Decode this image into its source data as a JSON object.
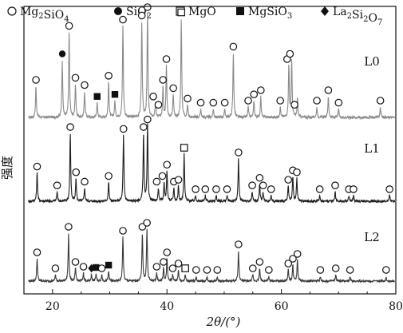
{
  "chart_data": {
    "type": "line",
    "title": "",
    "xlabel": "2θ/(°)",
    "ylabel": "强度",
    "xlim": [
      15,
      80
    ],
    "xticks": [
      20,
      40,
      60,
      80
    ],
    "yticks_shown": false,
    "grid": false,
    "legend_position": "top",
    "legend": [
      {
        "symbol": "open-circle",
        "label": "Mg2SiO4",
        "label_main": "Mg",
        "sub1": "2",
        "mid": "SiO",
        "sub2": "4"
      },
      {
        "symbol": "filled-circle",
        "label": "SiO2",
        "label_main": "SiO",
        "sub1": "2",
        "mid": "",
        "sub2": ""
      },
      {
        "symbol": "open-square",
        "label": "MgO",
        "label_main": "MgO",
        "sub1": "",
        "mid": "",
        "sub2": ""
      },
      {
        "symbol": "filled-square",
        "label": "MgSiO3",
        "label_main": "MgSiO",
        "sub1": "3",
        "mid": "",
        "sub2": ""
      },
      {
        "symbol": "filled-diamond",
        "label": "La2Si2O7",
        "label_main": "La",
        "sub1": "2",
        "mid": "Si",
        "sub2": "2",
        "tail": "O",
        "sub3": "7"
      }
    ],
    "series": [
      {
        "name": "L0",
        "line_color": "#8a8a8a",
        "peaks": [
          {
            "x": 17.1,
            "h": 0.3
          },
          {
            "x": 21.7,
            "h": 0.55
          },
          {
            "x": 22.9,
            "h": 0.82
          },
          {
            "x": 24.0,
            "h": 0.32
          },
          {
            "x": 25.6,
            "h": 0.25
          },
          {
            "x": 27.8,
            "h": 0.14
          },
          {
            "x": 29.8,
            "h": 0.34
          },
          {
            "x": 30.9,
            "h": 0.16
          },
          {
            "x": 32.3,
            "h": 0.88
          },
          {
            "x": 35.6,
            "h": 0.92
          },
          {
            "x": 36.6,
            "h": 1.0
          },
          {
            "x": 38.0,
            "h": 0.14
          },
          {
            "x": 39.3,
            "h": 0.3
          },
          {
            "x": 39.9,
            "h": 0.5
          },
          {
            "x": 41.1,
            "h": 0.22
          },
          {
            "x": 42.5,
            "h": 0.95
          },
          {
            "x": 43.6,
            "h": 0.12
          },
          {
            "x": 45.9,
            "h": 0.08
          },
          {
            "x": 48.1,
            "h": 0.08
          },
          {
            "x": 50.1,
            "h": 0.08
          },
          {
            "x": 51.6,
            "h": 0.62
          },
          {
            "x": 54.2,
            "h": 0.1
          },
          {
            "x": 55.2,
            "h": 0.16
          },
          {
            "x": 56.4,
            "h": 0.2
          },
          {
            "x": 59.8,
            "h": 0.1
          },
          {
            "x": 61.3,
            "h": 0.5
          },
          {
            "x": 61.8,
            "h": 0.55
          },
          {
            "x": 62.8,
            "h": 0.18
          },
          {
            "x": 66.2,
            "h": 0.1
          },
          {
            "x": 68.2,
            "h": 0.2
          },
          {
            "x": 70.0,
            "h": 0.08
          },
          {
            "x": 77.3,
            "h": 0.1
          }
        ],
        "markers": [
          {
            "x": 17.1,
            "symbol": "open-circle"
          },
          {
            "x": 21.7,
            "symbol": "filled-circle"
          },
          {
            "x": 22.9,
            "symbol": "open-circle"
          },
          {
            "x": 24.0,
            "symbol": "open-circle"
          },
          {
            "x": 25.6,
            "symbol": "open-circle"
          },
          {
            "x": 27.8,
            "symbol": "filled-square"
          },
          {
            "x": 29.8,
            "symbol": "open-circle"
          },
          {
            "x": 30.9,
            "symbol": "filled-square"
          },
          {
            "x": 32.3,
            "symbol": "open-circle"
          },
          {
            "x": 35.6,
            "symbol": "open-circle"
          },
          {
            "x": 36.6,
            "symbol": "open-circle"
          },
          {
            "x": 37.6,
            "symbol": "open-circle"
          },
          {
            "x": 38.5,
            "symbol": "open-circle"
          },
          {
            "x": 39.3,
            "symbol": "open-circle"
          },
          {
            "x": 39.9,
            "symbol": "open-circle"
          },
          {
            "x": 41.1,
            "symbol": "open-circle"
          },
          {
            "x": 42.5,
            "symbol": "open-square"
          },
          {
            "x": 43.6,
            "symbol": "open-circle"
          },
          {
            "x": 45.9,
            "symbol": "open-circle"
          },
          {
            "x": 48.1,
            "symbol": "open-circle"
          },
          {
            "x": 50.1,
            "symbol": "open-circle"
          },
          {
            "x": 51.6,
            "symbol": "open-circle"
          },
          {
            "x": 54.2,
            "symbol": "open-circle"
          },
          {
            "x": 55.2,
            "symbol": "open-circle"
          },
          {
            "x": 56.4,
            "symbol": "open-circle"
          },
          {
            "x": 59.8,
            "symbol": "open-circle"
          },
          {
            "x": 61.0,
            "symbol": "open-circle"
          },
          {
            "x": 61.5,
            "symbol": "open-circle"
          },
          {
            "x": 62.3,
            "symbol": "open-circle"
          },
          {
            "x": 66.2,
            "symbol": "open-circle"
          },
          {
            "x": 68.2,
            "symbol": "open-circle"
          },
          {
            "x": 70.0,
            "symbol": "open-circle"
          },
          {
            "x": 77.3,
            "symbol": "open-circle"
          }
        ]
      },
      {
        "name": "L1",
        "line_color": "#1e1e1e",
        "peaks": [
          {
            "x": 17.3,
            "h": 0.3
          },
          {
            "x": 20.8,
            "h": 0.1
          },
          {
            "x": 23.1,
            "h": 0.72
          },
          {
            "x": 24.1,
            "h": 0.24
          },
          {
            "x": 25.6,
            "h": 0.14
          },
          {
            "x": 29.8,
            "h": 0.2
          },
          {
            "x": 32.4,
            "h": 0.7
          },
          {
            "x": 35.9,
            "h": 0.72
          },
          {
            "x": 36.6,
            "h": 0.8
          },
          {
            "x": 38.5,
            "h": 0.14
          },
          {
            "x": 39.5,
            "h": 0.2
          },
          {
            "x": 40.0,
            "h": 0.32
          },
          {
            "x": 41.2,
            "h": 0.14
          },
          {
            "x": 42.0,
            "h": 0.16
          },
          {
            "x": 43.0,
            "h": 0.5
          },
          {
            "x": 45.0,
            "h": 0.06
          },
          {
            "x": 46.7,
            "h": 0.06
          },
          {
            "x": 48.6,
            "h": 0.06
          },
          {
            "x": 50.5,
            "h": 0.06
          },
          {
            "x": 52.5,
            "h": 0.45
          },
          {
            "x": 54.9,
            "h": 0.1
          },
          {
            "x": 56.2,
            "h": 0.18
          },
          {
            "x": 56.8,
            "h": 0.1
          },
          {
            "x": 58.2,
            "h": 0.06
          },
          {
            "x": 61.2,
            "h": 0.16
          },
          {
            "x": 62.0,
            "h": 0.26
          },
          {
            "x": 62.7,
            "h": 0.24
          },
          {
            "x": 66.7,
            "h": 0.06
          },
          {
            "x": 69.4,
            "h": 0.1
          },
          {
            "x": 71.8,
            "h": 0.06
          },
          {
            "x": 72.6,
            "h": 0.06
          },
          {
            "x": 78.9,
            "h": 0.06
          }
        ],
        "markers": [
          {
            "x": 17.3,
            "symbol": "open-circle"
          },
          {
            "x": 20.8,
            "symbol": "open-circle"
          },
          {
            "x": 23.1,
            "symbol": "open-circle"
          },
          {
            "x": 24.1,
            "symbol": "open-circle"
          },
          {
            "x": 25.6,
            "symbol": "open-circle"
          },
          {
            "x": 29.8,
            "symbol": "open-circle"
          },
          {
            "x": 32.4,
            "symbol": "open-circle"
          },
          {
            "x": 35.9,
            "symbol": "open-circle"
          },
          {
            "x": 36.6,
            "symbol": "open-circle"
          },
          {
            "x": 38.2,
            "symbol": "open-circle"
          },
          {
            "x": 39.2,
            "symbol": "open-circle"
          },
          {
            "x": 40.0,
            "symbol": "open-circle"
          },
          {
            "x": 41.2,
            "symbol": "open-circle"
          },
          {
            "x": 42.0,
            "symbol": "open-circle"
          },
          {
            "x": 43.0,
            "symbol": "open-square"
          },
          {
            "x": 45.0,
            "symbol": "open-circle"
          },
          {
            "x": 46.7,
            "symbol": "open-circle"
          },
          {
            "x": 48.6,
            "symbol": "open-circle"
          },
          {
            "x": 50.5,
            "symbol": "open-circle"
          },
          {
            "x": 52.5,
            "symbol": "open-circle"
          },
          {
            "x": 54.9,
            "symbol": "open-circle"
          },
          {
            "x": 56.2,
            "symbol": "open-circle"
          },
          {
            "x": 56.8,
            "symbol": "open-circle"
          },
          {
            "x": 58.2,
            "symbol": "open-circle"
          },
          {
            "x": 61.2,
            "symbol": "open-circle"
          },
          {
            "x": 62.0,
            "symbol": "open-circle"
          },
          {
            "x": 62.7,
            "symbol": "open-circle"
          },
          {
            "x": 66.7,
            "symbol": "open-circle"
          },
          {
            "x": 69.4,
            "symbol": "open-circle"
          },
          {
            "x": 71.8,
            "symbol": "open-circle"
          },
          {
            "x": 72.6,
            "symbol": "open-circle"
          },
          {
            "x": 78.9,
            "symbol": "open-circle"
          }
        ]
      },
      {
        "name": "L2",
        "line_color": "#3a3a3a",
        "peaks": [
          {
            "x": 17.3,
            "h": 0.28
          },
          {
            "x": 20.5,
            "h": 0.08
          },
          {
            "x": 22.8,
            "h": 0.6
          },
          {
            "x": 24.0,
            "h": 0.16
          },
          {
            "x": 25.4,
            "h": 0.1
          },
          {
            "x": 26.8,
            "h": 0.08
          },
          {
            "x": 27.6,
            "h": 0.09
          },
          {
            "x": 28.6,
            "h": 0.08
          },
          {
            "x": 29.8,
            "h": 0.12
          },
          {
            "x": 32.3,
            "h": 0.55
          },
          {
            "x": 35.7,
            "h": 0.6
          },
          {
            "x": 36.5,
            "h": 0.65
          },
          {
            "x": 38.2,
            "h": 0.1
          },
          {
            "x": 39.4,
            "h": 0.16
          },
          {
            "x": 40.0,
            "h": 0.28
          },
          {
            "x": 41.0,
            "h": 0.08
          },
          {
            "x": 42.0,
            "h": 0.14
          },
          {
            "x": 43.2,
            "h": 0.08
          },
          {
            "x": 45.1,
            "h": 0.05
          },
          {
            "x": 47.0,
            "h": 0.05
          },
          {
            "x": 48.8,
            "h": 0.05
          },
          {
            "x": 52.5,
            "h": 0.38
          },
          {
            "x": 55.0,
            "h": 0.08
          },
          {
            "x": 56.2,
            "h": 0.16
          },
          {
            "x": 57.8,
            "h": 0.05
          },
          {
            "x": 61.2,
            "h": 0.14
          },
          {
            "x": 62.0,
            "h": 0.2
          },
          {
            "x": 62.8,
            "h": 0.26
          },
          {
            "x": 66.8,
            "h": 0.05
          },
          {
            "x": 69.5,
            "h": 0.08
          },
          {
            "x": 72.0,
            "h": 0.05
          },
          {
            "x": 78.3,
            "h": 0.05
          }
        ],
        "markers": [
          {
            "x": 17.3,
            "symbol": "open-circle"
          },
          {
            "x": 20.5,
            "symbol": "open-circle"
          },
          {
            "x": 22.8,
            "symbol": "open-circle"
          },
          {
            "x": 24.0,
            "symbol": "open-circle"
          },
          {
            "x": 25.4,
            "symbol": "open-circle"
          },
          {
            "x": 26.8,
            "symbol": "filled-diamond"
          },
          {
            "x": 27.6,
            "symbol": "filled-square"
          },
          {
            "x": 28.6,
            "symbol": "open-circle"
          },
          {
            "x": 29.8,
            "symbol": "filled-square"
          },
          {
            "x": 32.3,
            "symbol": "open-circle"
          },
          {
            "x": 35.7,
            "symbol": "open-circle"
          },
          {
            "x": 36.5,
            "symbol": "open-circle"
          },
          {
            "x": 38.2,
            "symbol": "open-circle"
          },
          {
            "x": 39.4,
            "symbol": "open-circle"
          },
          {
            "x": 40.0,
            "symbol": "open-circle"
          },
          {
            "x": 41.0,
            "symbol": "open-circle"
          },
          {
            "x": 42.0,
            "symbol": "open-circle"
          },
          {
            "x": 43.2,
            "symbol": "open-square"
          },
          {
            "x": 45.1,
            "symbol": "open-circle"
          },
          {
            "x": 47.0,
            "symbol": "open-circle"
          },
          {
            "x": 48.8,
            "symbol": "open-circle"
          },
          {
            "x": 52.5,
            "symbol": "open-circle"
          },
          {
            "x": 55.0,
            "symbol": "open-circle"
          },
          {
            "x": 56.2,
            "symbol": "open-circle"
          },
          {
            "x": 57.8,
            "symbol": "open-circle"
          },
          {
            "x": 61.2,
            "symbol": "open-circle"
          },
          {
            "x": 62.0,
            "symbol": "open-circle"
          },
          {
            "x": 62.8,
            "symbol": "open-circle"
          },
          {
            "x": 66.8,
            "symbol": "open-circle"
          },
          {
            "x": 69.5,
            "symbol": "open-circle"
          },
          {
            "x": 72.0,
            "symbol": "open-circle"
          },
          {
            "x": 78.3,
            "symbol": "open-circle"
          }
        ]
      }
    ]
  }
}
